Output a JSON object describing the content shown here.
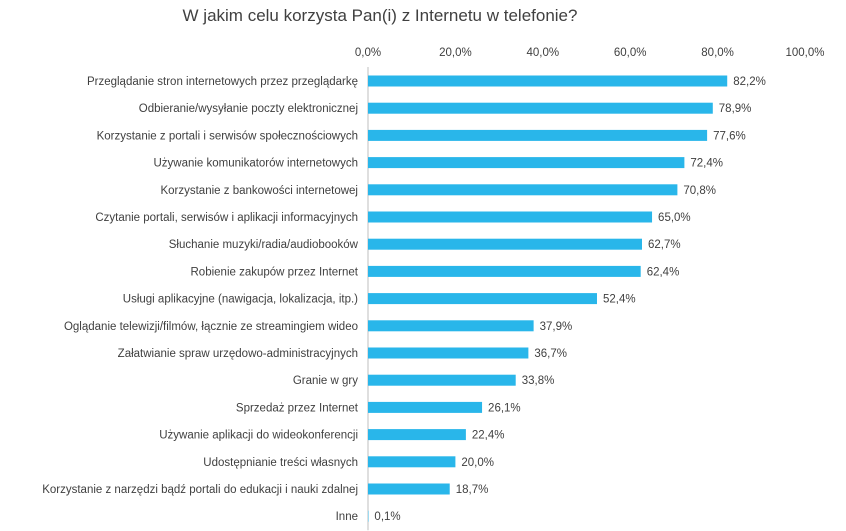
{
  "chart_data": {
    "type": "bar",
    "orientation": "horizontal",
    "title": "W jakim celu korzysta Pan(i) z Internetu w telefonie?",
    "xlim": [
      0,
      100
    ],
    "tick_labels": [
      "0,0%",
      "20,0%",
      "40,0%",
      "60,0%",
      "80,0%",
      "100,0%"
    ],
    "tick_values": [
      0,
      20,
      40,
      60,
      80,
      100
    ],
    "legend": "none",
    "grid": false,
    "color": "#29b6ea",
    "categories": [
      "Przeglądanie stron internetowych przez przeglądarkę",
      "Odbieranie/wysyłanie poczty elektronicznej",
      "Korzystanie z portali i serwisów społecznościowych",
      "Używanie komunikatorów internetowych",
      "Korzystanie z bankowości internetowej",
      "Czytanie portali, serwisów i aplikacji informacyjnych",
      "Słuchanie muzyki/radia/audiobooków",
      "Robienie zakupów przez Internet",
      "Usługi aplikacyjne (nawigacja, lokalizacja, itp.)",
      "Oglądanie telewizji/filmów, łącznie ze streamingiem wideo",
      "Załatwianie spraw urzędowo-administracyjnych",
      "Granie w gry",
      "Sprzedaż przez Internet",
      "Używanie aplikacji do wideokonferencji",
      "Udostępnianie treści własnych",
      "Korzystanie z narzędzi bądź portali do edukacji i nauki zdalnej",
      "Inne"
    ],
    "values": [
      82.2,
      78.9,
      77.6,
      72.4,
      70.8,
      65.0,
      62.7,
      62.4,
      52.4,
      37.9,
      36.7,
      33.8,
      26.1,
      22.4,
      20.0,
      18.7,
      0.1
    ],
    "value_labels": [
      "82,2%",
      "78,9%",
      "77,6%",
      "72,4%",
      "70,8%",
      "65,0%",
      "62,7%",
      "62,4%",
      "52,4%",
      "37,9%",
      "36,7%",
      "33,8%",
      "26,1%",
      "22,4%",
      "20,0%",
      "18,7%",
      "0,1%"
    ]
  }
}
